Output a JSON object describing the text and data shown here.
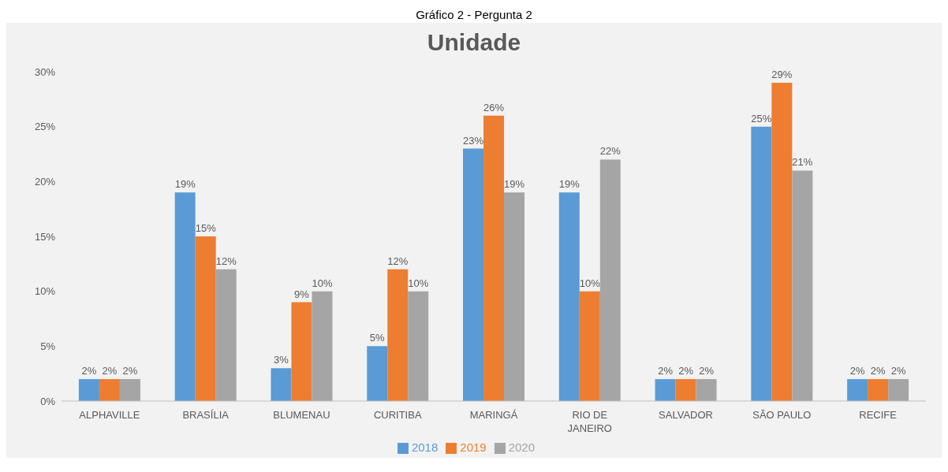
{
  "chart_data": {
    "type": "bar",
    "title": "Unidade",
    "annotations": [
      "Gráfico 2 - Pergunta 2"
    ],
    "categories": [
      "ALPHAVILLE",
      "BRASÍLIA",
      "BLUMENAU",
      "CURITIBA",
      "MARINGÁ",
      "RIO DE JANEIRO",
      "SALVADOR",
      "SÃO PAULO",
      "RECIFE"
    ],
    "series": [
      {
        "name": "2018",
        "color": "#5b9bd5",
        "values": [
          2,
          19,
          3,
          5,
          23,
          19,
          2,
          25,
          2
        ],
        "value_labels": [
          "2%",
          "19%",
          "3%",
          "5%",
          "23%",
          "19%",
          "2%",
          "25%",
          "2%"
        ]
      },
      {
        "name": "2019",
        "color": "#ed7d31",
        "values": [
          2,
          15,
          9,
          12,
          26,
          10,
          2,
          29,
          2
        ],
        "value_labels": [
          "2%",
          "15%",
          "9%",
          "12%",
          "26%",
          "10%",
          "2%",
          "29%",
          "2%"
        ]
      },
      {
        "name": "2020",
        "color": "#a5a5a5",
        "values": [
          2,
          12,
          10,
          10,
          19,
          22,
          2,
          21,
          2
        ],
        "value_labels": [
          "2%",
          "12%",
          "10%",
          "10%",
          "19%",
          "22%",
          "2%",
          "21%",
          "2%"
        ]
      }
    ],
    "ylim": [
      0,
      30
    ],
    "yticks": [
      {
        "value": 0,
        "label": "0%"
      },
      {
        "value": 5,
        "label": "5%"
      },
      {
        "value": 10,
        "label": "10%"
      },
      {
        "value": 15,
        "label": "15%"
      },
      {
        "value": 20,
        "label": "20%"
      },
      {
        "value": 25,
        "label": "25%"
      },
      {
        "value": 30,
        "label": "30%"
      }
    ],
    "grid": false,
    "legend": "bottom"
  }
}
